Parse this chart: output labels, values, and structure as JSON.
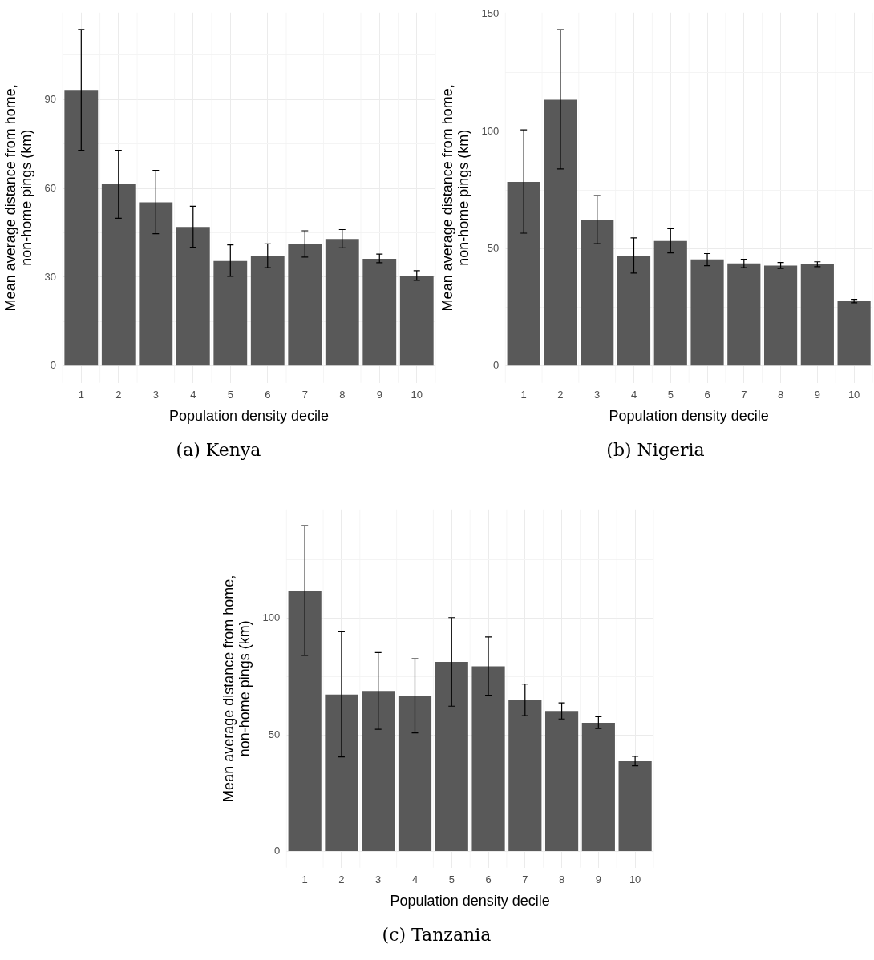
{
  "chart_data": [
    {
      "type": "bar",
      "title": "(a) Kenya",
      "xlabel": "Population density decile",
      "ylabel": "Mean average distance from home,\nnon-home pings (km)",
      "categories": [
        "1",
        "2",
        "3",
        "4",
        "5",
        "6",
        "7",
        "8",
        "9",
        "10"
      ],
      "color": "#595959",
      "grid": true,
      "values": [
        93.3,
        61.5,
        55.3,
        47.0,
        35.5,
        37.2,
        41.2,
        42.9,
        36.2,
        30.5
      ],
      "errors": [
        [
          72.9,
          113.7
        ],
        [
          49.9,
          72.9
        ],
        [
          44.7,
          66.1
        ],
        [
          40.1,
          54.0
        ],
        [
          30.3,
          40.9
        ],
        [
          33.2,
          41.3
        ],
        [
          36.8,
          45.7
        ],
        [
          39.9,
          46.1
        ],
        [
          34.9,
          37.8
        ],
        [
          28.9,
          32.2
        ]
      ],
      "ylim": [
        -5.7,
        119.4
      ],
      "yticks": [
        0,
        {
          "value": 15,
          "label": null
        },
        30,
        {
          "value": 45,
          "label": null
        },
        60,
        {
          "value": 75,
          "label": null
        },
        90,
        {
          "value": 105,
          "label": null
        }
      ]
    },
    {
      "type": "bar",
      "title": "(b) Nigeria",
      "xlabel": "Population density decile",
      "ylabel": "Mean average distance from home,\nnon-home pings (km)",
      "categories": [
        "1",
        "2",
        "3",
        "4",
        "5",
        "6",
        "7",
        "8",
        "9",
        "10"
      ],
      "color": "#595959",
      "grid": true,
      "values": [
        78.5,
        113.5,
        62.3,
        47.0,
        53.3,
        45.4,
        43.7,
        42.8,
        43.3,
        27.7
      ],
      "errors": [
        [
          56.6,
          100.6
        ],
        [
          84.0,
          143.3
        ],
        [
          52.1,
          72.6
        ],
        [
          39.6,
          54.6
        ],
        [
          48.2,
          58.5
        ],
        [
          42.7,
          47.9
        ],
        [
          41.9,
          45.5
        ],
        [
          41.5,
          44.1
        ],
        [
          42.3,
          44.4
        ],
        [
          26.9,
          28.4
        ]
      ],
      "ylim": [
        -7.2,
        150.6
      ],
      "yticks": [
        0,
        {
          "value": 25,
          "label": null
        },
        50,
        {
          "value": 75,
          "label": null
        },
        100,
        {
          "value": 125,
          "label": null
        },
        150
      ]
    },
    {
      "type": "bar",
      "title": "(c) Tanzania",
      "xlabel": "Population density decile",
      "ylabel": "Mean average distance from home,\nnon-home pings (km)",
      "categories": [
        "1",
        "2",
        "3",
        "4",
        "5",
        "6",
        "7",
        "8",
        "9",
        "10"
      ],
      "color": "#595959",
      "grid": true,
      "values": [
        111.8,
        67.3,
        68.8,
        66.7,
        81.3,
        79.4,
        64.9,
        60.2,
        55.2,
        38.7
      ],
      "errors": [
        [
          84.1,
          139.7
        ],
        [
          40.5,
          94.2
        ],
        [
          52.4,
          85.3
        ],
        [
          50.8,
          82.6
        ],
        [
          62.3,
          100.3
        ],
        [
          67.0,
          92.0
        ],
        [
          58.2,
          71.8
        ],
        [
          56.8,
          63.7
        ],
        [
          52.7,
          57.8
        ],
        [
          36.7,
          40.8
        ]
      ],
      "ylim": [
        -7,
        146.7
      ],
      "yticks": [
        0,
        {
          "value": 25,
          "label": null
        },
        50,
        {
          "value": 75,
          "label": null
        },
        100,
        {
          "value": 125,
          "label": null
        }
      ]
    }
  ]
}
